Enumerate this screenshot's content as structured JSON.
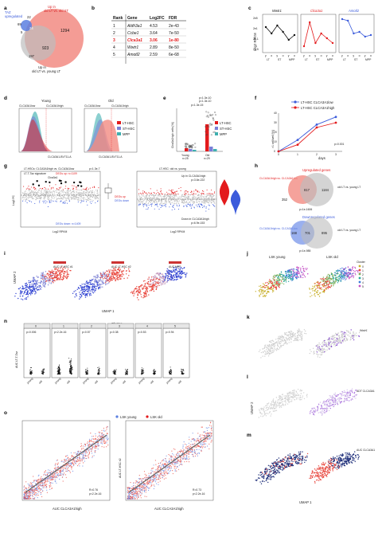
{
  "colors": {
    "red": "#e31a1c",
    "salmon": "#f4a582",
    "blue": "#3b5bdb",
    "purple": "#7b3fb0",
    "navy": "#1f2f7a",
    "grey": "#cfcfcf",
    "pink": "#f7a6a6"
  },
  "panels": {
    "a": {
      "label": "a",
      "taz": "TAZ\nupregulated",
      "up": "Up in\nold LT vs. old ST",
      "uplt": "Up in\nold LT vs. young LT",
      "n": [
        "69",
        "22",
        "1294",
        "24",
        "923",
        "197",
        "5"
      ]
    },
    "b": {
      "label": "b",
      "headers": [
        "Rank",
        "Gene",
        "Log2FC",
        "FDR"
      ],
      "rows": [
        [
          "1",
          "Aldh3a1",
          "4.53",
          "2e-43"
        ],
        [
          "2",
          "Ccbe1",
          "3.64",
          "7e-50"
        ],
        [
          "3",
          "Clca3a1",
          "3.06",
          "1e-80"
        ],
        [
          "4",
          "Wwtr1",
          "2.89",
          "8e-50"
        ],
        [
          "5",
          "Amotl2",
          "2.59",
          "6e-68"
        ]
      ]
    },
    "c": {
      "label": "c",
      "genes": [
        "Wwtr1",
        "Clca3a1",
        "Amotl2"
      ],
      "ylabel": "Log2 RPKM",
      "yticks": [
        "2e5",
        "2e1",
        "2e-1",
        "2e-5"
      ],
      "xcats": [
        "LT",
        "ST",
        "MPP"
      ],
      "yo": [
        "y",
        "o",
        "y",
        "o",
        "y",
        "o"
      ]
    },
    "d": {
      "label": "d",
      "young": "Young",
      "old": "Old",
      "gates": [
        "CLCA3A1low",
        "CLCA3A1high"
      ],
      "xlabel": "CLCA3A1-BV711-A",
      "legend": [
        "LT-HSC",
        "ST-HSC",
        "MPP"
      ]
    },
    "e": {
      "label": "e",
      "ylabel": "Clca3a1high cells [%]",
      "p1": "p=1.3e-15",
      "p2": "p=1.3e-10",
      "p3": "p=1.3e-10",
      "groups": [
        "Young\nn=25",
        "Old\nn=29"
      ],
      "legend": [
        "LT-HSC",
        "ST-HSC",
        "MPP"
      ]
    },
    "f": {
      "label": "f",
      "legend": [
        "LT-HSC CLCA3A1low",
        "LT-HSC CLCA3A1high"
      ],
      "ylabel": ">1 cell/well [%]",
      "xlabel": "days",
      "xticks": [
        "0",
        "1",
        "2",
        "3"
      ],
      "yticks": [
        "0",
        "10",
        "20",
        "30",
        "40"
      ],
      "p": "p=0.001"
    },
    "g": {
      "label": "g",
      "title1": "LT-HSCs: CLCA3A1high vs. CLCA3A1low",
      "ptop": "p=1.3e-7",
      "xlabel": "Log2 RPKM",
      "ylabel": "Log2 FC",
      "leg1": "LT-T-Taz signature",
      "leg2": "DEGs up: n=1109",
      "leg3": "DEGs down: n=1409",
      "gene": "Clca3a1",
      "title2": "LT-HSC: old vs. young",
      "up": "Up in CLCA3A1high",
      "down": "Down in CLCA3A1high",
      "pu": "p=3.6e-222",
      "pd": "p=6.9e-153",
      "degs_up": "DEGs up",
      "degs_down": "DEGs down"
    },
    "h": {
      "label": "h",
      "up_title": "Upregulated genes",
      "down_title": "Downregulated genes",
      "clca_hi": "CLCA3A1high vs. CLCA3A1low",
      "old_lt": "old LT vs. young LT",
      "up_n": [
        "352",
        "817",
        "1184"
      ],
      "dn_n": [
        "168",
        "701",
        "895"
      ],
      "p_up": "p=1e-1606",
      "p_dn": "p=1e-985"
    },
    "i": {
      "label": "i",
      "xlabel": "UMAP 1",
      "ylabel": "UMAP 2",
      "maps": [
        "AUC LT-HSC #1",
        "AUC LT-HSC #2",
        "AUC MPP"
      ]
    },
    "j": {
      "label": "j",
      "titles": [
        "LSK young",
        "LSK old"
      ],
      "legend_title": "Cluster",
      "clusters": [
        "0",
        "1",
        "2",
        "3",
        "4",
        "5"
      ]
    },
    "k": {
      "label": "k",
      "gene": "Wwtr1"
    },
    "l": {
      "label": "l",
      "gene": "ADT CLCA3A1"
    },
    "m": {
      "label": "m",
      "gene": "AUC CLCA3A1",
      "xlabel": "UMAP 1",
      "ylabel": "UMAP 2"
    },
    "n": {
      "label": "n",
      "title": "Cluster",
      "ylabel": "AUC LT-T-Taz",
      "clusters": [
        "0",
        "1",
        "2",
        "3",
        "4",
        "5"
      ],
      "pvals": [
        "p=0.006",
        "p<2.2e-16",
        "p=0.57",
        "p=0.38",
        "p=0.53",
        "p=0.94"
      ],
      "groups": [
        "young",
        "old"
      ]
    },
    "o": {
      "label": "o",
      "legend": [
        "LSK young",
        "LSK old"
      ],
      "xlabel": "AUC CLCA3A1high",
      "ylabels": [
        "AUC LT-HSC #1",
        "AUC LT-HSC #2"
      ],
      "stats": [
        "R=0.76\np<2.2e-16",
        "R=0.73\np<2.2e-16"
      ]
    }
  }
}
